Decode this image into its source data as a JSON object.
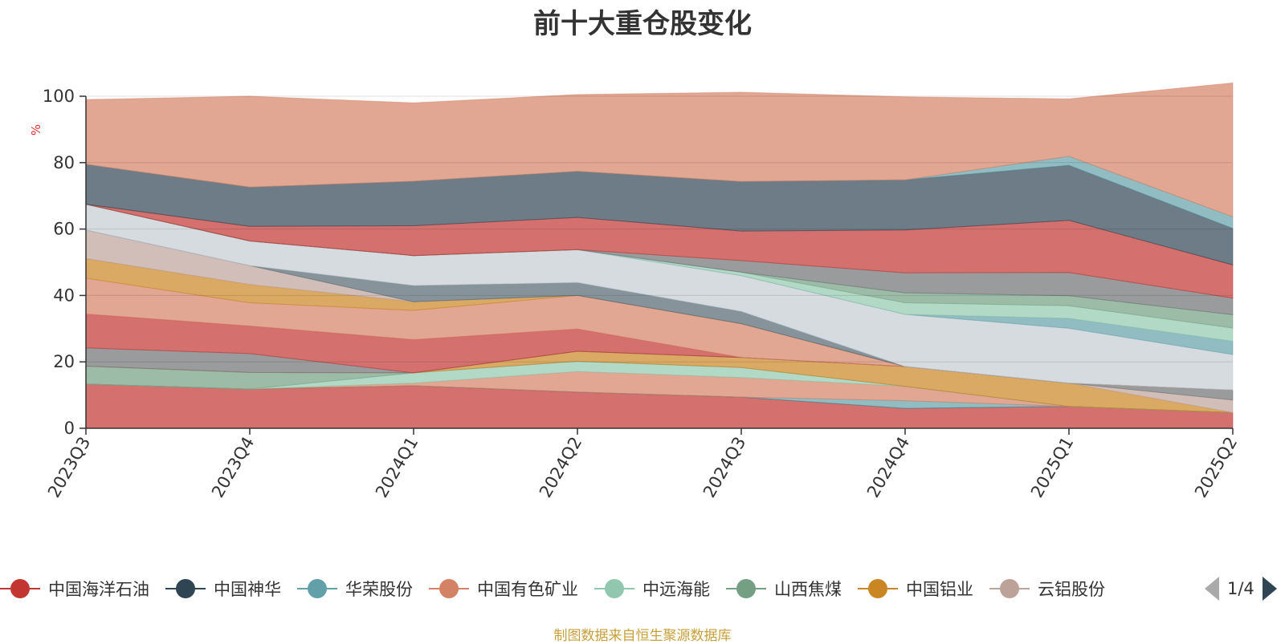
{
  "chart_data": {
    "type": "area",
    "title": "前十大重仓股变化",
    "ylabel": "%",
    "ylim": [
      0,
      100
    ],
    "yticks": [
      0,
      20,
      40,
      60,
      80,
      100
    ],
    "stacked": true,
    "categories": [
      "2023Q3",
      "2023Q4",
      "2024Q1",
      "2024Q2",
      "2024Q3",
      "2024Q4",
      "2025Q1",
      "2025Q2"
    ],
    "series": [
      {
        "name": "中国海洋石油",
        "color": "#c23531",
        "values": [
          13.3,
          11.8,
          12.8,
          10.9,
          9.4,
          6.0,
          6.6,
          4.7
        ]
      },
      {
        "name": "中国神华",
        "color": "#2f4554",
        "values": [
          0,
          0,
          0,
          0,
          0,
          0,
          0,
          0
        ]
      },
      {
        "name": "华荣股份",
        "color": "#61a0a8",
        "values": [
          0,
          0,
          0,
          0,
          0,
          2.3,
          0,
          0
        ]
      },
      {
        "name": "中国有色矿业",
        "color": "#d48265",
        "values": [
          0,
          0,
          0.8,
          6.2,
          5.9,
          4.3,
          0,
          0
        ]
      },
      {
        "name": "中远海能",
        "color": "#91c7ae",
        "values": [
          0,
          0,
          3.1,
          3.1,
          3.0,
          0,
          0,
          0
        ]
      },
      {
        "name": "山西焦煤",
        "color": "#749f83",
        "values": [
          5.4,
          5.0,
          0,
          0,
          0,
          0,
          0,
          0
        ]
      },
      {
        "name": "中国铝业",
        "color": "#ca8622",
        "values": [
          0,
          0,
          0,
          3.0,
          3.0,
          6.0,
          7.0,
          0
        ]
      },
      {
        "name": "云铝股份",
        "color": "#bda29a",
        "values": [
          0,
          0,
          0,
          0,
          0,
          0,
          0,
          3.8
        ]
      },
      {
        "name": "",
        "color": "#6e7074",
        "values": [
          5.5,
          5.7,
          0,
          0,
          0,
          0,
          0,
          3.0
        ]
      },
      {
        "name": "",
        "color": "#c23531",
        "values": [
          10.2,
          8.3,
          10.0,
          6.7,
          0,
          0,
          0,
          0
        ]
      },
      {
        "name": "",
        "color": "#d48265",
        "values": [
          10.8,
          7.0,
          8.8,
          10.1,
          10.2,
          0,
          0,
          0
        ]
      },
      {
        "name": "",
        "color": "#ca8622",
        "values": [
          5.9,
          5.5,
          2.6,
          0,
          0,
          0,
          0,
          0
        ]
      },
      {
        "name": "",
        "color": "#bda29a",
        "values": [
          8.6,
          5.7,
          0,
          0,
          0,
          0,
          0,
          0
        ]
      },
      {
        "name": "",
        "color": "#546570",
        "values": [
          0,
          0,
          4.9,
          3.9,
          3.7,
          0,
          0,
          0
        ]
      },
      {
        "name": "",
        "color": "#c4ccd3",
        "values": [
          7.8,
          7.4,
          9.0,
          9.9,
          10.8,
          15.7,
          16.5,
          10.7
        ]
      },
      {
        "name": "",
        "color": "#61a0a8",
        "values": [
          0,
          0,
          0,
          0,
          0,
          0,
          3.0,
          4.0
        ]
      },
      {
        "name": "",
        "color": "#91c7ae",
        "values": [
          0,
          0,
          0,
          0,
          1.0,
          3.5,
          3.8,
          4.0
        ]
      },
      {
        "name": "",
        "color": "#749f83",
        "values": [
          0,
          0,
          0,
          0,
          0,
          3.0,
          3.0,
          4.0
        ]
      },
      {
        "name": "",
        "color": "#6e7074",
        "values": [
          0,
          0,
          0,
          0,
          3.5,
          6.0,
          7.0,
          5.0
        ]
      },
      {
        "name": "",
        "color": "#c23531",
        "values": [
          0,
          4.4,
          9.0,
          9.7,
          8.9,
          12.9,
          15.7,
          10.0
        ]
      },
      {
        "name": "",
        "color": "#2f4554",
        "values": [
          12.0,
          11.8,
          13.4,
          13.9,
          14.9,
          15.1,
          16.6,
          11.0
        ]
      },
      {
        "name": "",
        "color": "#61a0a8",
        "values": [
          0,
          0,
          0,
          0,
          0,
          0,
          2.7,
          3.5
        ]
      },
      {
        "name": "",
        "color": "#d48265",
        "values": [
          19.5,
          27.4,
          23.6,
          23.1,
          26.9,
          25.0,
          17.3,
          40.3
        ]
      }
    ]
  },
  "legend": {
    "items": [
      {
        "name": "中国海洋石油",
        "color": "#c23531"
      },
      {
        "name": "中国神华",
        "color": "#2f4554"
      },
      {
        "name": "华荣股份",
        "color": "#61a0a8"
      },
      {
        "name": "中国有色矿业",
        "color": "#d48265"
      },
      {
        "name": "中远海能",
        "color": "#91c7ae"
      },
      {
        "name": "山西焦煤",
        "color": "#749f83"
      },
      {
        "name": "中国铝业",
        "color": "#ca8622"
      },
      {
        "name": "云铝股份",
        "color": "#bda29a"
      }
    ],
    "page_text": "1/4"
  },
  "source_note": "制图数据来自恒生聚源数据库"
}
